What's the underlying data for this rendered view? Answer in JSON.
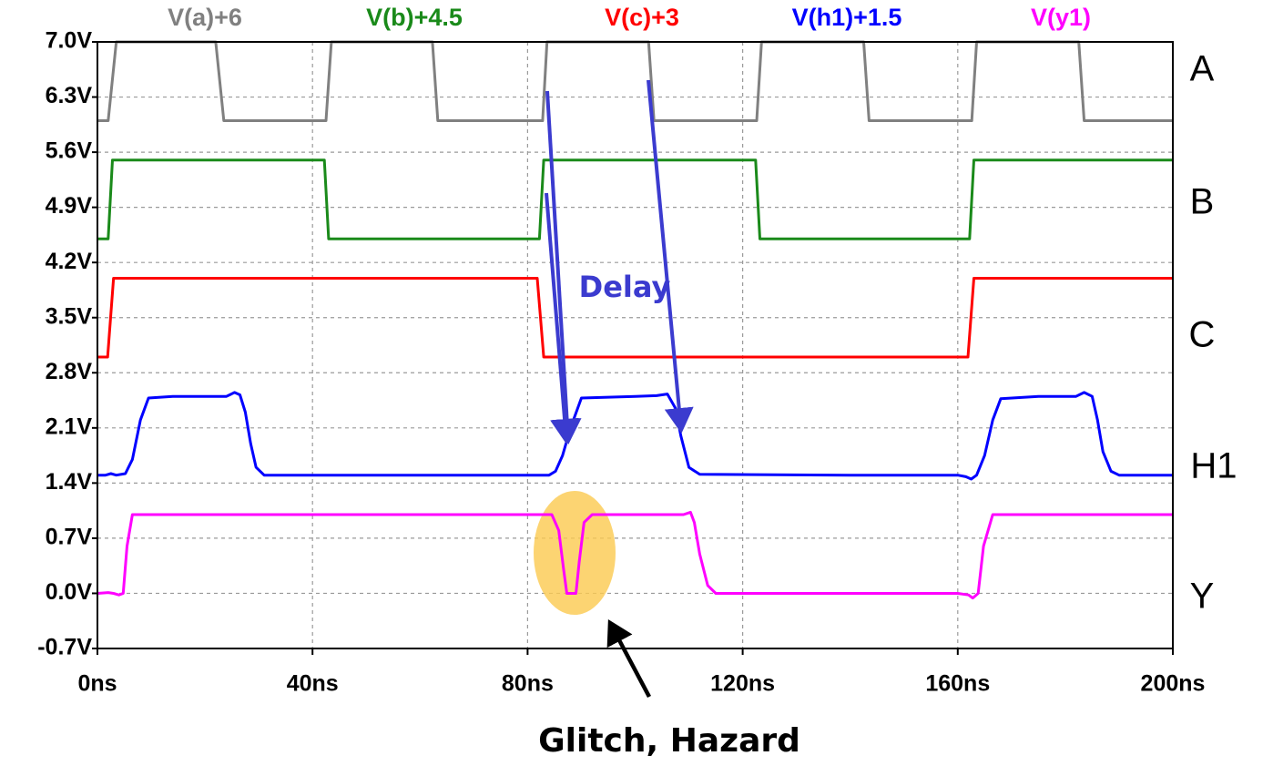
{
  "chart_data": {
    "type": "line",
    "xlim": [
      0,
      200
    ],
    "xticks": [
      {
        "value": 0,
        "label": "0ns"
      },
      {
        "value": 40,
        "label": "40ns"
      },
      {
        "value": 80,
        "label": "80ns"
      },
      {
        "value": 120,
        "label": "120ns"
      },
      {
        "value": 160,
        "label": "160ns"
      },
      {
        "value": 200,
        "label": "200ns"
      }
    ],
    "ylim": [
      -0.7,
      7
    ],
    "yticks": [
      {
        "value": 7,
        "label": "7.0V"
      },
      {
        "value": 6.3,
        "label": "6.3V"
      },
      {
        "value": 5.6,
        "label": "5.6V"
      },
      {
        "value": 4.9,
        "label": "4.9V"
      },
      {
        "value": 4.2,
        "label": "4.2V"
      },
      {
        "value": 3.5,
        "label": "3.5V"
      },
      {
        "value": 2.8,
        "label": "2.8V"
      },
      {
        "value": 2.1,
        "label": "2.1V"
      },
      {
        "value": 1.4,
        "label": "1.4V"
      },
      {
        "value": 0.7,
        "label": "0.7V"
      },
      {
        "value": 0,
        "label": "0.0V"
      },
      {
        "value": -0.7,
        "label": "-0.7V"
      }
    ],
    "grid": true,
    "series": [
      {
        "name": "V(a)+6",
        "color": "#808080",
        "x": [
          0,
          2,
          3.5,
          22,
          23.5,
          42.5,
          43.5,
          62.3,
          63.3,
          82.8,
          83.6,
          102.5,
          103.5,
          122.6,
          123.5,
          142.5,
          143.5,
          162.6,
          163.5,
          182.5,
          183.5,
          200
        ],
        "values": [
          6,
          6,
          7,
          7,
          6,
          6,
          7,
          7,
          6,
          6,
          7,
          7,
          6,
          6,
          7,
          7,
          6,
          6,
          7,
          7,
          6,
          6
        ]
      },
      {
        "name": "V(b)+4.5",
        "color": "#1a8a1a",
        "x": [
          0,
          2,
          2.8,
          42.2,
          43,
          82.2,
          83,
          122.4,
          123.2,
          162.2,
          163,
          200
        ],
        "values": [
          4.5,
          4.5,
          5.5,
          5.5,
          4.5,
          4.5,
          5.5,
          5.5,
          4.5,
          4.5,
          5.5,
          5.5
        ]
      },
      {
        "name": "V(c)+3",
        "color": "#ff0000",
        "x": [
          0,
          1.9,
          3,
          81.8,
          83,
          161.9,
          163,
          200
        ],
        "values": [
          3,
          3,
          4,
          4,
          3,
          3,
          4,
          4
        ]
      },
      {
        "name": "V(h1)+1.5",
        "color": "#0000ff",
        "x": [
          0,
          1.5,
          2.5,
          3.5,
          5.2,
          6.5,
          8,
          9.5,
          14,
          24,
          25.5,
          26.5,
          27.5,
          28.5,
          29.5,
          31,
          60,
          84,
          85.2,
          86.5,
          88,
          90,
          100,
          104,
          106,
          107.5,
          108.5,
          110,
          112,
          140,
          160,
          161.5,
          162.5,
          163.5,
          165,
          166.5,
          168,
          175,
          182,
          183.5,
          185,
          186,
          187,
          188.5,
          190,
          200
        ],
        "values": [
          1.5,
          1.5,
          1.52,
          1.5,
          1.52,
          1.7,
          2.2,
          2.48,
          2.5,
          2.5,
          2.55,
          2.52,
          2.3,
          1.9,
          1.6,
          1.5,
          1.5,
          1.5,
          1.55,
          1.75,
          2.1,
          2.48,
          2.5,
          2.51,
          2.53,
          2.35,
          2,
          1.6,
          1.51,
          1.5,
          1.5,
          1.48,
          1.45,
          1.5,
          1.75,
          2.2,
          2.47,
          2.5,
          2.5,
          2.55,
          2.5,
          2.2,
          1.8,
          1.55,
          1.5,
          1.5
        ]
      },
      {
        "name": "V(y1)",
        "color": "#ff00ff",
        "x": [
          0,
          2,
          3,
          4,
          4.8,
          5.5,
          6.5,
          20,
          81.5,
          84.5,
          85.8,
          86.7,
          87.3,
          89,
          89.6,
          90.5,
          92,
          100,
          109,
          110.3,
          111,
          112,
          113.5,
          115,
          140,
          160,
          162,
          162.8,
          163.8,
          164.8,
          166.5,
          200
        ],
        "values": [
          0,
          0.01,
          0,
          -0.02,
          0,
          0.6,
          1,
          1,
          1,
          1,
          0.8,
          0.3,
          0,
          0,
          0.4,
          0.9,
          1,
          1,
          1,
          1.03,
          0.9,
          0.5,
          0.1,
          0,
          0,
          0,
          -0.02,
          -0.06,
          0,
          0.6,
          1,
          1
        ]
      }
    ],
    "trace_labels": [
      "A",
      "B",
      "C",
      "H1",
      "Y"
    ],
    "annotations": [
      "Delay",
      "Glitch, Hazard"
    ]
  }
}
